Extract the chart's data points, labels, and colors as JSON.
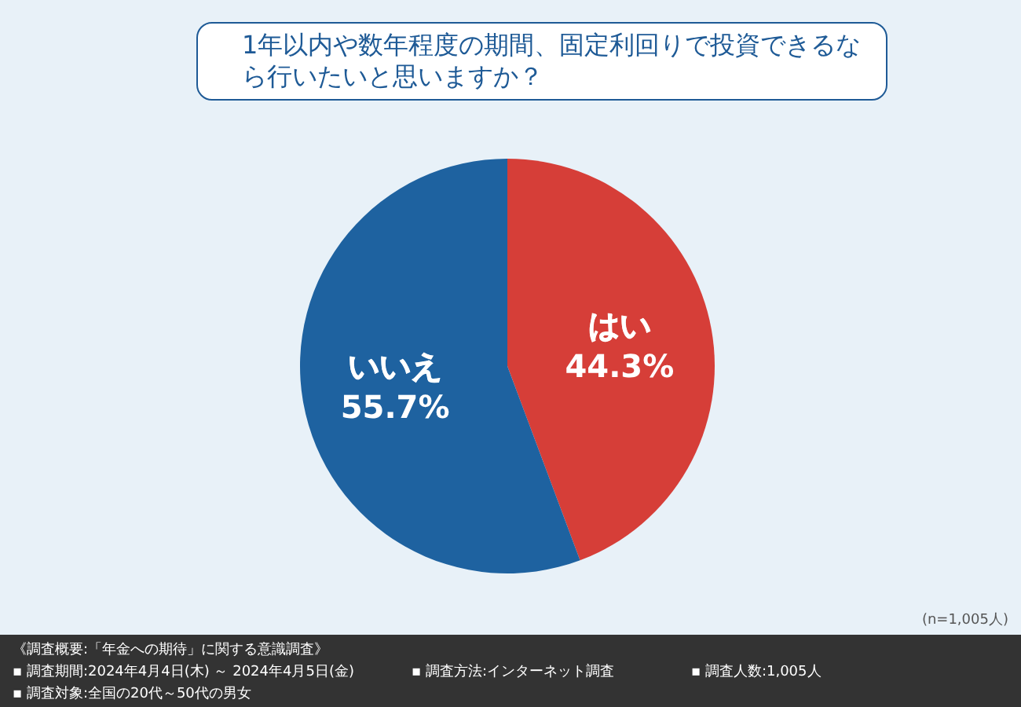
{
  "chart_data": {
    "type": "pie",
    "title": "1年以内や数年程度の期間、固定利回りで投資できるなら行いたいと思いますか？",
    "categories": [
      "はい",
      "いいえ"
    ],
    "values": [
      44.3,
      55.7
    ],
    "colors": [
      "#d63e38",
      "#1e62a0"
    ],
    "value_labels": [
      "44.3%",
      "55.7%"
    ],
    "annotations": [
      "(n=1,005人)",
      "《調査概要:「年金への期待」に関する意識調査》",
      "▪ 調査期間:2024年4月4日(木) ～ 2024年4月5日(金)",
      "▪ 調査方法:インターネット調査",
      "▪ 調査人数:1,005人",
      "▪ 調査対象:全国の20代～50代の男女"
    ]
  }
}
